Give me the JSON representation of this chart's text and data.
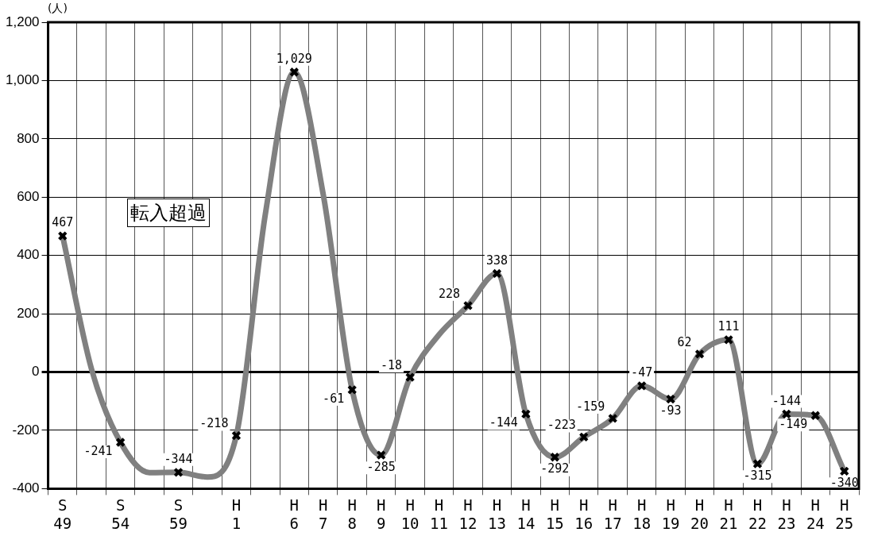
{
  "chart_data": {
    "type": "line",
    "ylabel": "(人)",
    "categories": [
      "S\n49",
      null,
      "S\n54",
      null,
      "S\n59",
      null,
      "H\n1",
      null,
      "H\n6",
      "H\n7",
      "H\n8",
      "H\n9",
      "H\n10",
      "H\n11",
      "H\n12",
      "H\n13",
      "H\n14",
      "H\n15",
      "H\n16",
      "H\n17",
      "H\n18",
      "H\n19",
      "H\n20",
      "H\n21",
      "H\n22",
      "H\n23",
      "H\n24",
      "H\n25"
    ],
    "series": [
      {
        "color": "#808080",
        "values": [
          467,
          10,
          -241,
          -345,
          -344,
          -360,
          -218,
          540,
          1029,
          610,
          -61,
          -285,
          -18,
          128,
          228,
          338,
          -144,
          -292,
          -223,
          -159,
          -47,
          -93,
          62,
          111,
          -315,
          -144,
          -149,
          -340
        ],
        "value_labels": [
          "467",
          null,
          "-241",
          null,
          "-344",
          null,
          "-218",
          null,
          "1,029",
          null,
          "-61",
          "-285",
          "-18",
          null,
          "228",
          "338",
          "-144",
          "-292",
          "-223",
          "-159",
          "-47",
          "-93",
          "62",
          "111",
          "-315",
          "-144",
          "-149",
          "-340"
        ]
      }
    ],
    "ylim": [
      -400,
      1200
    ],
    "yticks": [
      {
        "value": -400,
        "label": "-400"
      },
      {
        "value": -200,
        "label": "-200"
      },
      0,
      200,
      400,
      600,
      800,
      {
        "value": 1000,
        "label": "1,000"
      },
      {
        "value": 1200,
        "label": "1,200"
      }
    ],
    "grid": true,
    "marker": "cross",
    "line_style": "solid",
    "legend": false,
    "annotations": [
      "転入超過"
    ]
  }
}
